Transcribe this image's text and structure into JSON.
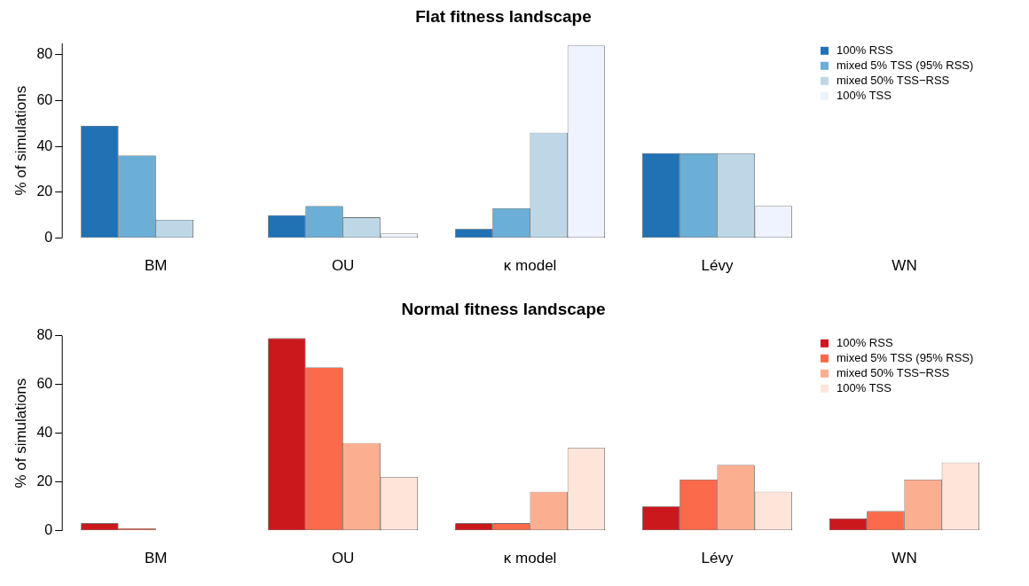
{
  "chart_data": [
    {
      "type": "bar",
      "title": "Flat fitness landscape",
      "ylabel": "% of simulations",
      "categories": [
        "BM",
        "OU",
        "κ model",
        "Lévy",
        "WN"
      ],
      "ylim": [
        0,
        85
      ],
      "yticks": [
        0,
        20,
        40,
        60,
        80
      ],
      "legend": "top right",
      "series": [
        {
          "name": "100% RSS",
          "color": "#2171b5",
          "values": [
            49,
            10,
            4,
            37,
            0
          ]
        },
        {
          "name": "mixed 5% TSS (95% RSS)",
          "color": "#6baed6",
          "values": [
            36,
            14,
            13,
            37,
            0
          ]
        },
        {
          "name": "mixed 50% TSS−RSS",
          "color": "#bdd7e7",
          "values": [
            8,
            9,
            46,
            37,
            0
          ]
        },
        {
          "name": "100% TSS",
          "color": "#eff3ff",
          "values": [
            0,
            2,
            84,
            14,
            0
          ]
        }
      ]
    },
    {
      "type": "bar",
      "title": "Normal fitness landscape",
      "ylabel": "% of simulations",
      "categories": [
        "BM",
        "OU",
        "κ model",
        "Lévy",
        "WN"
      ],
      "ylim": [
        0,
        80
      ],
      "yticks": [
        0,
        20,
        40,
        60,
        80
      ],
      "legend": "top right",
      "series": [
        {
          "name": "100% RSS",
          "color": "#cb181d",
          "values": [
            3,
            79,
            3,
            10,
            5
          ]
        },
        {
          "name": "mixed 5% TSS (95% RSS)",
          "color": "#fb6a4a",
          "values": [
            1,
            67,
            3,
            21,
            8
          ]
        },
        {
          "name": "mixed 50% TSS−RSS",
          "color": "#fcae91",
          "values": [
            0,
            36,
            16,
            27,
            21
          ]
        },
        {
          "name": "100% TSS",
          "color": "#fee5d9",
          "values": [
            0,
            22,
            34,
            16,
            28
          ]
        }
      ]
    }
  ]
}
